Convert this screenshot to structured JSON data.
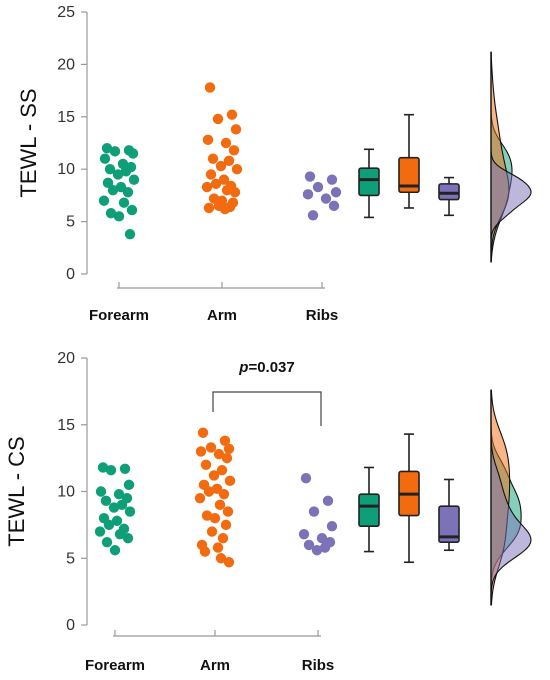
{
  "chart_data": [
    {
      "type": "scatter",
      "ylabel": "TEWL - SS",
      "ylim": [
        0,
        25
      ],
      "yticks": [
        "0",
        "5",
        "10",
        "15",
        "20",
        "25"
      ],
      "categories": [
        "Forearm",
        "Arm",
        "Ribs"
      ],
      "annotation": null,
      "series": [
        {
          "category": "Forearm",
          "color": "#0e9f78",
          "values": [
            12.0,
            11.8,
            11.7,
            11.5,
            11.0,
            10.5,
            10.2,
            10.0,
            9.8,
            9.5,
            9.0,
            8.7,
            8.3,
            8.0,
            7.8,
            7.0,
            6.8,
            6.1,
            5.8,
            5.5,
            3.8
          ],
          "box": {
            "min": 5.4,
            "q1": 7.5,
            "median": 9.0,
            "q3": 10.1,
            "max": 11.9
          }
        },
        {
          "category": "Arm",
          "color": "#f26b0f",
          "values": [
            17.8,
            15.2,
            14.8,
            13.8,
            12.8,
            12.5,
            11.8,
            11.0,
            10.8,
            10.3,
            10.0,
            9.5,
            9.0,
            8.6,
            8.4,
            8.3,
            8.0,
            7.8,
            7.2,
            7.0,
            6.8,
            6.5,
            6.4,
            6.3,
            6.2
          ],
          "box": {
            "min": 6.3,
            "q1": 7.8,
            "median": 8.4,
            "q3": 11.1,
            "max": 15.2
          }
        },
        {
          "category": "Ribs",
          "color": "#7b72b8",
          "values": [
            9.3,
            9.0,
            8.3,
            7.8,
            7.6,
            7.2,
            6.5,
            5.6
          ],
          "box": {
            "min": 5.6,
            "q1": 7.1,
            "median": 7.7,
            "q3": 8.6,
            "max": 9.2
          }
        }
      ]
    },
    {
      "type": "scatter",
      "ylabel": "TEWL - CS",
      "ylim": [
        0,
        20
      ],
      "yticks": [
        "0",
        "5",
        "10",
        "15",
        "20"
      ],
      "categories": [
        "Forearm",
        "Arm",
        "Ribs"
      ],
      "annotation": {
        "from": "Arm",
        "to": "Ribs",
        "prefix": "p",
        "value": "=0.037"
      },
      "series": [
        {
          "category": "Forearm",
          "color": "#0e9f78",
          "values": [
            11.8,
            11.7,
            11.6,
            10.5,
            10.0,
            9.8,
            9.5,
            9.3,
            9.0,
            8.8,
            8.5,
            8.0,
            7.8,
            7.5,
            7.2,
            7.0,
            6.8,
            6.5,
            6.2,
            5.6
          ],
          "box": {
            "min": 5.5,
            "q1": 7.4,
            "median": 8.9,
            "q3": 9.8,
            "max": 11.8
          }
        },
        {
          "category": "Arm",
          "color": "#f26b0f",
          "values": [
            14.4,
            13.8,
            13.3,
            13.2,
            13.0,
            12.8,
            12.5,
            12.0,
            11.6,
            11.2,
            10.8,
            10.5,
            10.2,
            10.0,
            9.8,
            9.5,
            9.0,
            8.5,
            8.2,
            8.0,
            7.5,
            7.0,
            6.5,
            6.0,
            5.8,
            5.5,
            5.0,
            4.7
          ],
          "box": {
            "min": 4.7,
            "q1": 8.2,
            "median": 9.8,
            "q3": 11.5,
            "max": 14.3
          }
        },
        {
          "category": "Ribs",
          "color": "#7b72b8",
          "values": [
            11.0,
            9.3,
            8.5,
            7.4,
            6.8,
            6.5,
            6.2,
            6.0,
            5.8,
            5.6
          ],
          "box": {
            "min": 5.6,
            "q1": 6.2,
            "median": 6.6,
            "q3": 8.9,
            "max": 10.9
          }
        }
      ]
    }
  ]
}
